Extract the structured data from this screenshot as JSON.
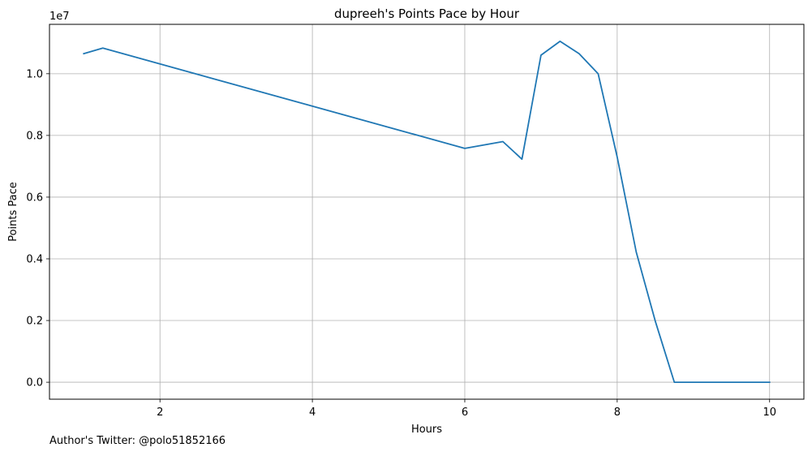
{
  "chart_data": {
    "type": "line",
    "title": "dupreeh's Points Pace by Hour",
    "xlabel": "Hours",
    "ylabel": "Points Pace",
    "y_offset_label": "1e7",
    "xlim": [
      0.55,
      10.45
    ],
    "ylim": [
      -550000,
      11600000
    ],
    "x_ticks": [
      2,
      4,
      6,
      8,
      10
    ],
    "x_tick_labels": [
      "2",
      "4",
      "6",
      "8",
      "10"
    ],
    "y_ticks": [
      0,
      2000000,
      4000000,
      6000000,
      8000000,
      10000000
    ],
    "y_tick_labels": [
      "0.0",
      "0.2",
      "0.4",
      "0.6",
      "0.8",
      "1.0"
    ],
    "grid": true,
    "line_color": "#1f77b4",
    "series": [
      {
        "x": [
          1.0,
          1.25,
          6.0,
          6.5,
          6.75,
          7.0,
          7.25,
          7.5,
          7.75,
          8.0,
          8.25,
          8.5,
          8.75,
          9.0,
          9.25,
          9.5,
          9.75,
          10.0
        ],
        "values": [
          10650000,
          10830000,
          7580000,
          7800000,
          7230000,
          10600000,
          11050000,
          10650000,
          10000000,
          7300000,
          4220000,
          1980000,
          0,
          0,
          0,
          0,
          0,
          0
        ]
      }
    ]
  },
  "footer": {
    "author": "Author's Twitter: @polo51852166"
  }
}
